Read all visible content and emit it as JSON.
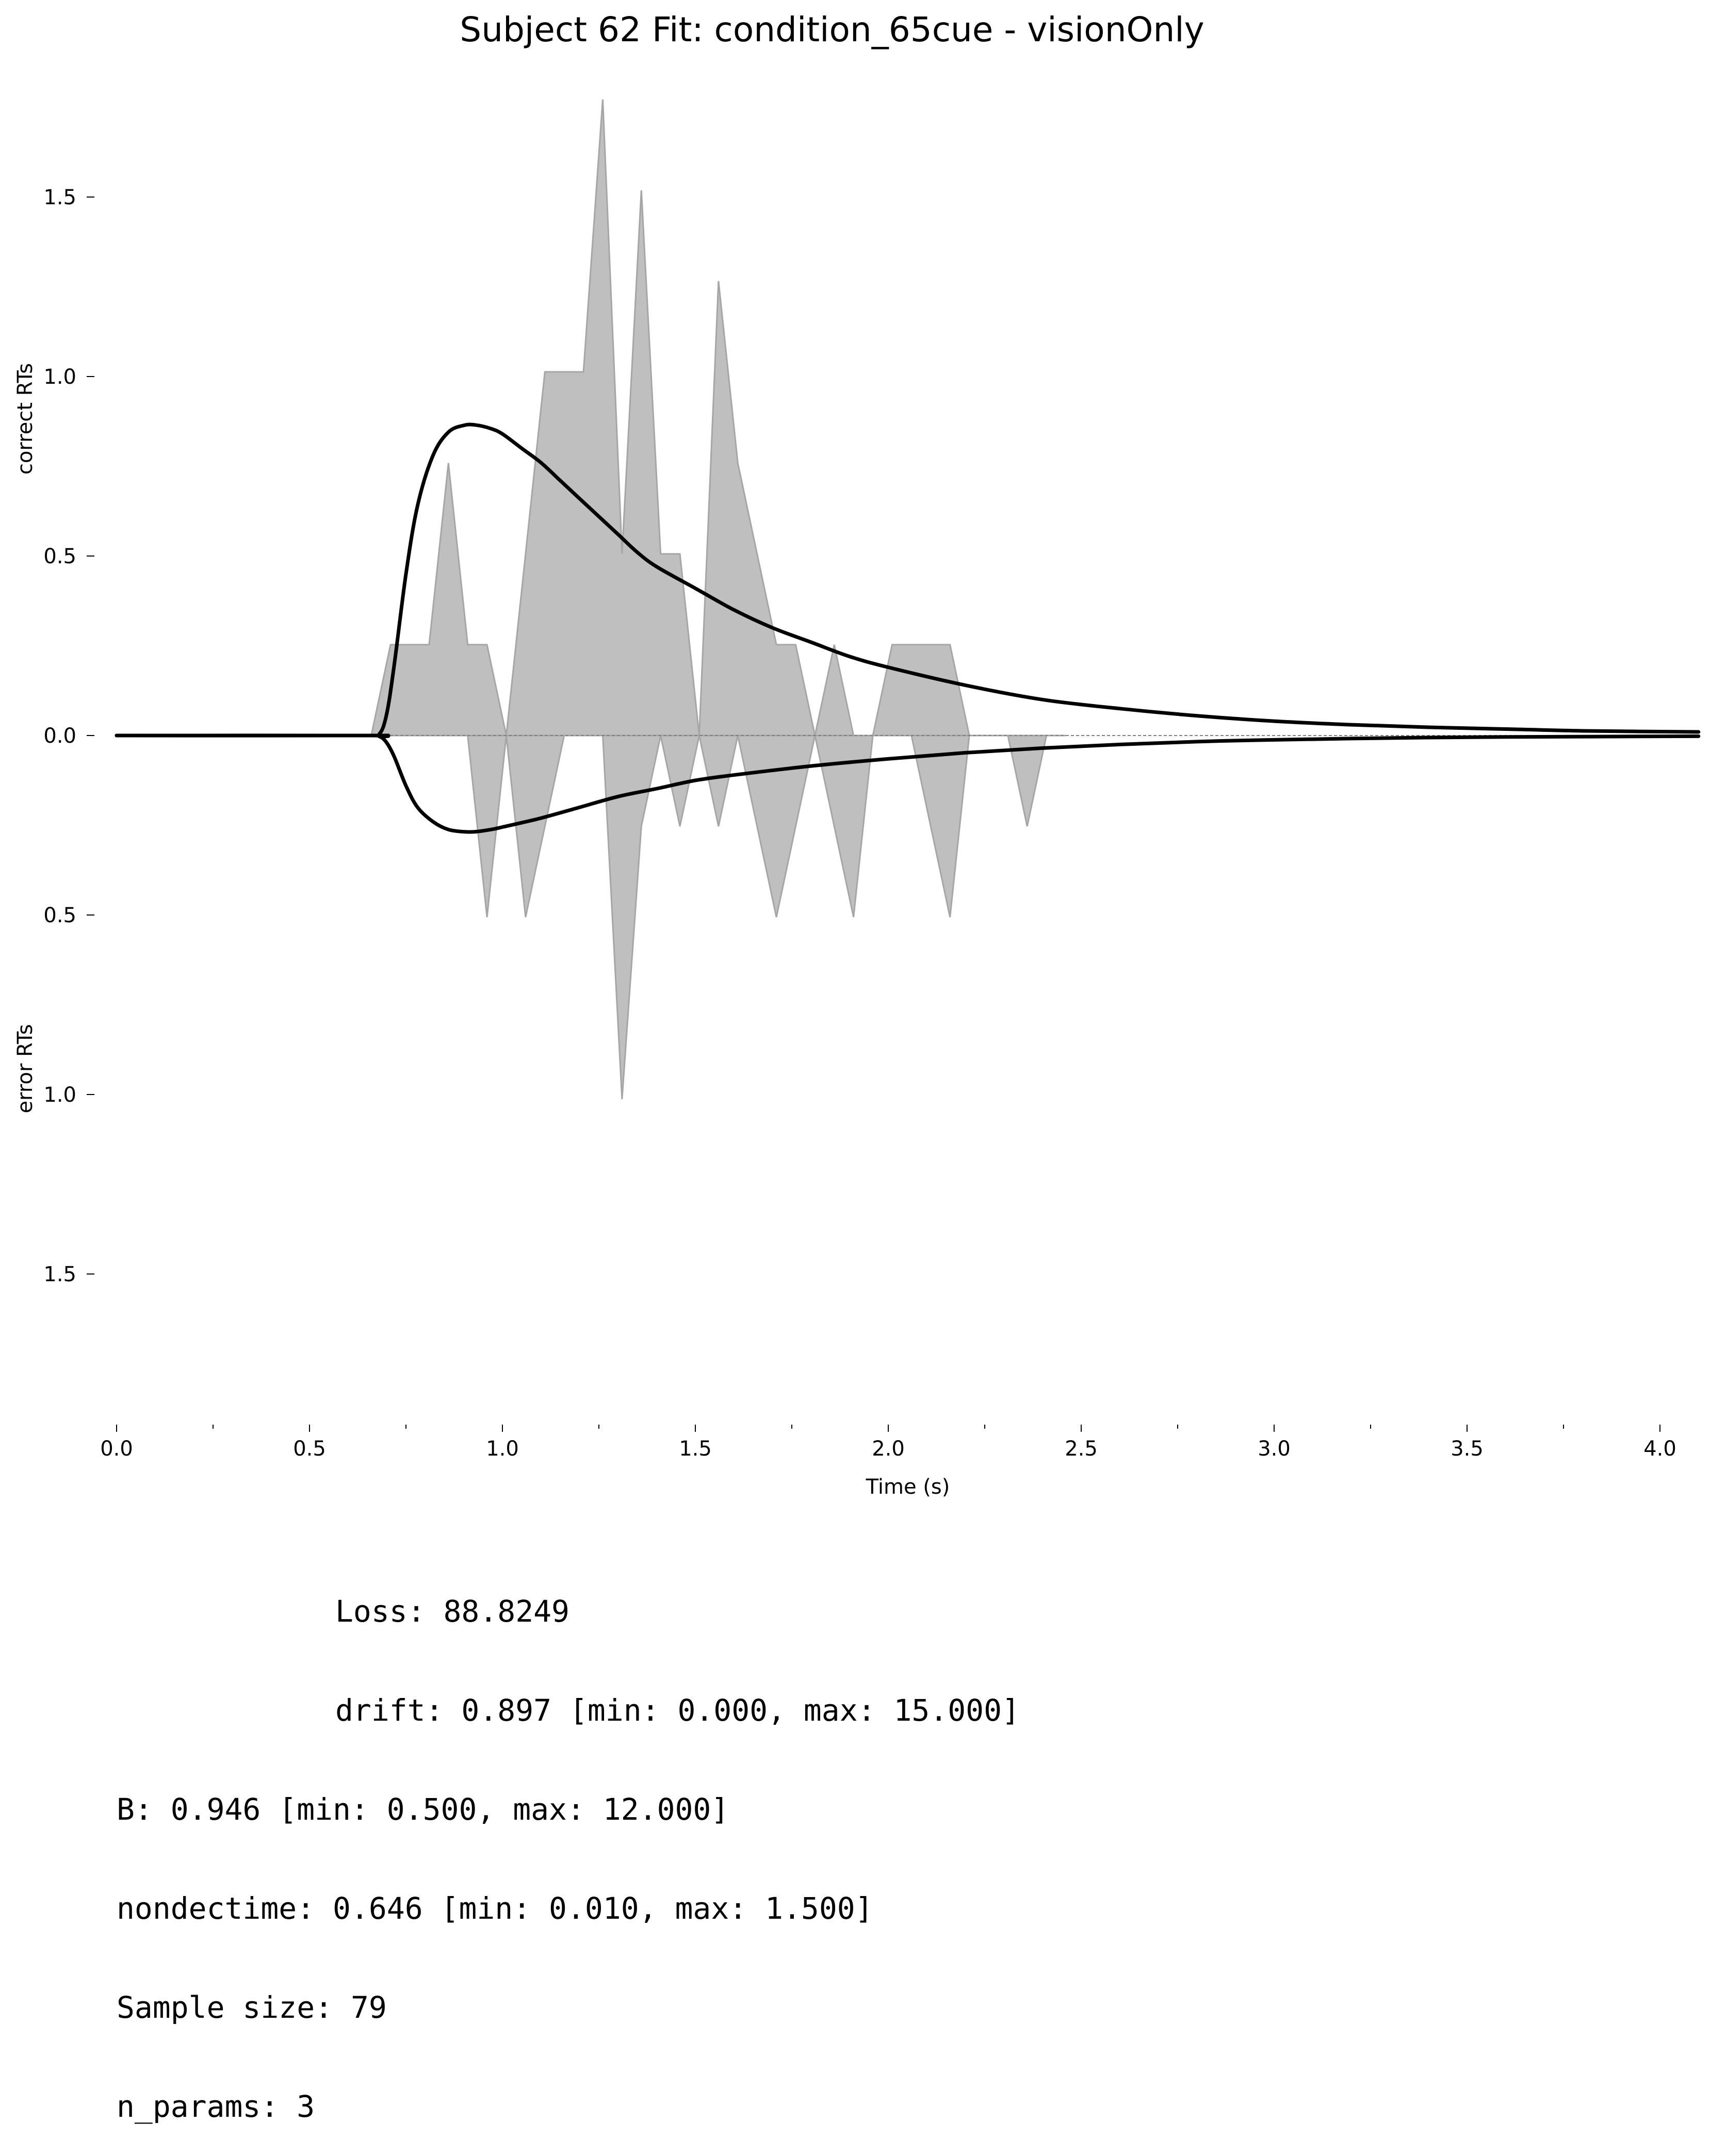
{
  "chart_data": {
    "type": "area",
    "title": "Subject 62 Fit: condition_65cue - visionOnly",
    "xlabel": "Time (s)",
    "ylabel_top": "correct RTs",
    "ylabel_bottom": "error RTs",
    "xlim": [
      0.0,
      4.1
    ],
    "ylim": [
      -1.9,
      1.9
    ],
    "x_ticks": [
      "0.0",
      "0.5",
      "1.0",
      "1.5",
      "2.0",
      "2.5",
      "3.0",
      "3.5",
      "4.0"
    ],
    "y_ticks_top": [
      "0.0",
      "0.5",
      "1.0",
      "1.5"
    ],
    "y_ticks_bottom": [
      "0.5",
      "1.0",
      "1.5"
    ],
    "grid": false,
    "legend": "none",
    "colors": {
      "histogram_fill": "#bfbfbf",
      "histogram_edge": "#a6a6a6",
      "model_line": "#000000",
      "zero_line": "#808080"
    },
    "series": [
      {
        "kind": "histogram",
        "response": "correct",
        "x": [
          0.0,
          0.66,
          0.71,
          0.76,
          0.81,
          0.86,
          0.91,
          0.96,
          1.01,
          1.06,
          1.11,
          1.16,
          1.21,
          1.26,
          1.31,
          1.36,
          1.41,
          1.46,
          1.51,
          1.56,
          1.61,
          1.66,
          1.71,
          1.76,
          1.81,
          1.86,
          1.91,
          1.96,
          2.01,
          2.06,
          2.11,
          2.16,
          2.21,
          2.26
        ],
        "y": [
          0.0,
          0.0,
          0.253,
          0.253,
          0.253,
          0.759,
          0.253,
          0.253,
          0.0,
          0.506,
          1.013,
          1.013,
          1.013,
          1.772,
          0.506,
          1.519,
          0.506,
          0.506,
          0.0,
          1.266,
          0.759,
          0.506,
          0.253,
          0.253,
          0.0,
          0.253,
          0.0,
          0.0,
          0.253,
          0.253,
          0.253,
          0.253,
          0.0,
          0.0
        ]
      },
      {
        "kind": "histogram",
        "response": "error",
        "x": [
          0.91,
          0.96,
          1.01,
          1.06,
          1.11,
          1.16,
          1.21,
          1.26,
          1.31,
          1.36,
          1.41,
          1.46,
          1.51,
          1.56,
          1.61,
          1.66,
          1.71,
          1.76,
          1.81,
          1.86,
          1.91,
          1.96,
          2.01,
          2.06,
          2.11,
          2.16,
          2.21,
          2.26,
          2.31,
          2.36,
          2.41,
          2.46
        ],
        "y": [
          0.0,
          0.506,
          0.0,
          0.506,
          0.253,
          0.0,
          0.0,
          0.0,
          1.013,
          0.253,
          0.0,
          0.253,
          0.0,
          0.253,
          0.0,
          0.253,
          0.506,
          0.253,
          0.0,
          0.253,
          0.506,
          0.0,
          0.0,
          0.0,
          0.253,
          0.506,
          0.0,
          0.0,
          0.0,
          0.253,
          0.0,
          0.0
        ]
      },
      {
        "kind": "model",
        "response": "correct",
        "x": [
          0.0,
          0.646,
          0.68,
          0.7,
          0.72,
          0.75,
          0.78,
          0.82,
          0.86,
          0.9,
          0.93,
          0.97,
          1.0,
          1.05,
          1.1,
          1.15,
          1.2,
          1.25,
          1.3,
          1.35,
          1.4,
          1.5,
          1.6,
          1.7,
          1.8,
          1.9,
          2.0,
          2.2,
          2.4,
          2.6,
          2.8,
          3.0,
          3.2,
          3.4,
          3.6,
          3.8,
          4.1
        ],
        "y": [
          0.0,
          0.0,
          0.003,
          0.06,
          0.2,
          0.45,
          0.64,
          0.78,
          0.845,
          0.864,
          0.865,
          0.855,
          0.84,
          0.8,
          0.76,
          0.71,
          0.66,
          0.61,
          0.56,
          0.51,
          0.47,
          0.41,
          0.35,
          0.3,
          0.26,
          0.22,
          0.19,
          0.14,
          0.1,
          0.075,
          0.055,
          0.04,
          0.03,
          0.023,
          0.018,
          0.013,
          0.01
        ]
      },
      {
        "kind": "model",
        "response": "error",
        "x": [
          0.0,
          0.646,
          0.68,
          0.7,
          0.72,
          0.75,
          0.78,
          0.82,
          0.86,
          0.9,
          0.93,
          0.97,
          1.0,
          1.1,
          1.2,
          1.3,
          1.4,
          1.5,
          1.6,
          1.8,
          2.0,
          2.2,
          2.4,
          2.6,
          2.8,
          3.0,
          3.3,
          3.6,
          4.1
        ],
        "y": [
          0.0,
          0.0,
          0.002,
          0.02,
          0.06,
          0.14,
          0.2,
          0.24,
          0.262,
          0.268,
          0.268,
          0.262,
          0.255,
          0.23,
          0.2,
          0.17,
          0.148,
          0.125,
          0.11,
          0.085,
          0.065,
          0.048,
          0.035,
          0.025,
          0.017,
          0.012,
          0.007,
          0.004,
          0.002
        ]
      }
    ]
  },
  "fit_stats": {
    "loss": "Loss: 88.8249",
    "drift": "drift: 0.897 [min: 0.000, max: 15.000]",
    "b": "B: 0.946 [min: 0.500, max: 12.000]",
    "nondectime": "nondectime: 0.646 [min: 0.010, max: 1.500]",
    "sample_size": "Sample size: 79",
    "n_params": "n_params: 3"
  }
}
